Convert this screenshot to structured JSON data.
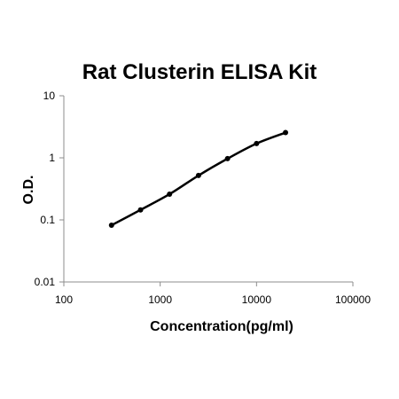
{
  "chart_data": {
    "type": "line",
    "title": "Rat Clusterin ELISA Kit",
    "xlabel": "Concentration(pg/ml)",
    "ylabel": "O.D.",
    "xscale": "log",
    "yscale": "log",
    "xlim": [
      100,
      100000
    ],
    "ylim": [
      0.01,
      10
    ],
    "x_ticks": [
      100,
      1000,
      10000,
      100000
    ],
    "x_tick_labels": [
      "100",
      "1000",
      "10000",
      "100000"
    ],
    "y_ticks": [
      0.01,
      0.1,
      1,
      10
    ],
    "y_tick_labels": [
      "0.01",
      "0.1",
      "1",
      "10"
    ],
    "grid": false,
    "series": [
      {
        "x": [
          312.5,
          625,
          1250,
          2500,
          5000,
          10000,
          20000
        ],
        "y": [
          0.082,
          0.145,
          0.26,
          0.52,
          0.97,
          1.7,
          2.55
        ]
      }
    ]
  }
}
